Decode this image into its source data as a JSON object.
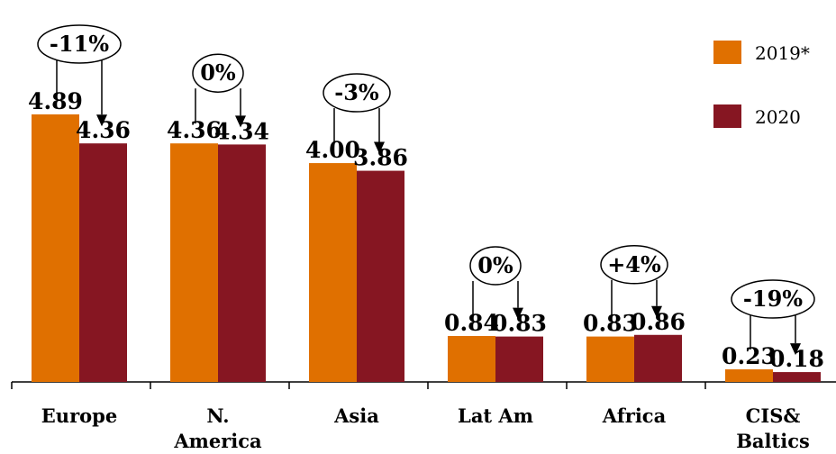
{
  "chart_data": {
    "type": "bar",
    "categories": [
      [
        "Europe"
      ],
      [
        "N.",
        "America"
      ],
      [
        "Asia"
      ],
      [
        "Lat Am"
      ],
      [
        "Africa"
      ],
      [
        "CIS&",
        "Baltics"
      ]
    ],
    "series": [
      {
        "name": "2019*",
        "color": "#e07000",
        "values": [
          4.89,
          4.36,
          4.0,
          0.84,
          0.83,
          0.23
        ],
        "labels": [
          "4.89",
          "4.36",
          "4.00",
          "0.84",
          "0.83",
          "0.23"
        ]
      },
      {
        "name": "2020",
        "color": "#861622",
        "values": [
          4.36,
          4.34,
          3.86,
          0.83,
          0.86,
          0.18
        ],
        "labels": [
          "4.36",
          "4.34",
          "3.86",
          "0.83",
          "0.86",
          "0.18"
        ]
      }
    ],
    "changes": [
      "-11%",
      "0%",
      "-3%",
      "0%",
      "+4%",
      "-19%"
    ],
    "ylim": [
      0,
      5
    ],
    "legend": {
      "placement": "top-right"
    },
    "grid": false
  }
}
